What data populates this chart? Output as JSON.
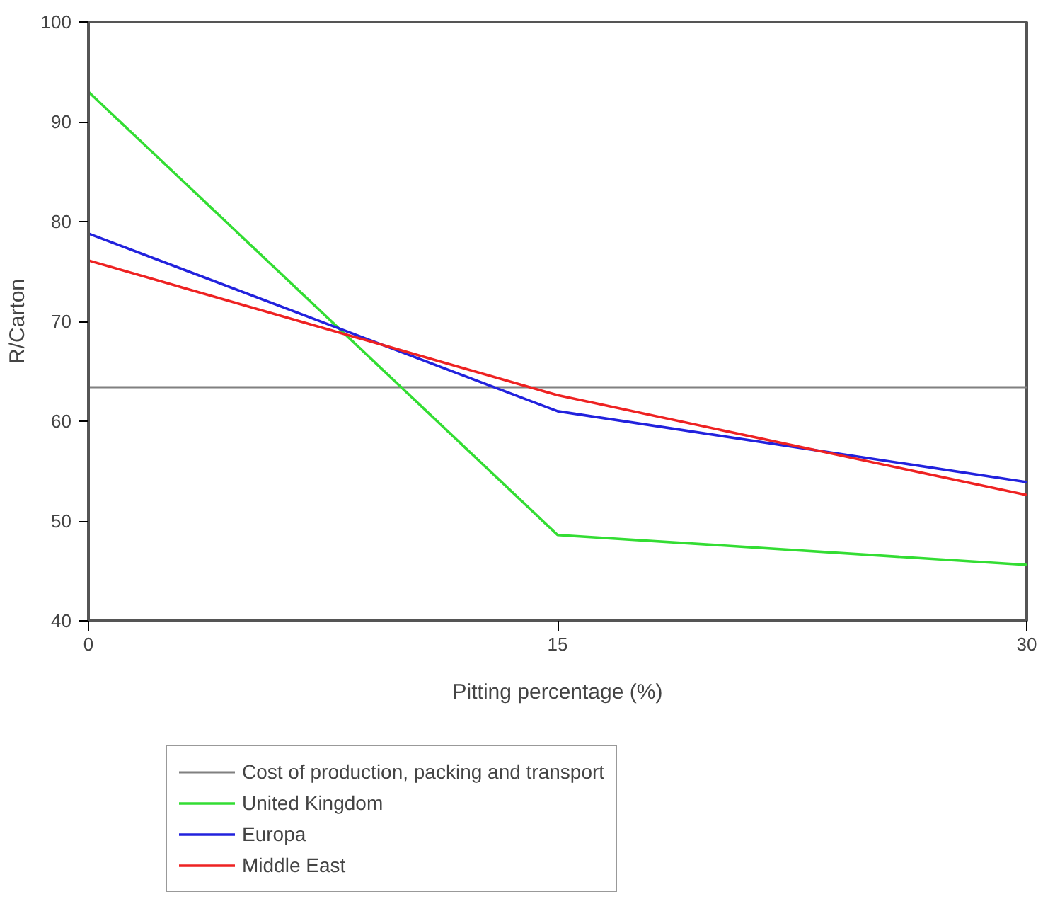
{
  "chart_data": {
    "type": "line",
    "xlabel": "Pitting percentage (%)",
    "ylabel": "R/Carton",
    "x": [
      0,
      15,
      30
    ],
    "xlim": [
      0,
      30
    ],
    "xticks": [
      0,
      15,
      30
    ],
    "ylim": [
      40,
      100
    ],
    "yticks": [
      40,
      50,
      60,
      70,
      80,
      90,
      100
    ],
    "grid": false,
    "legend": "bottom",
    "marker": "none",
    "line_style": "solid",
    "ref_lines": [
      {
        "axis": "y",
        "value": 63.4,
        "label": "Cost of production, packing and transport",
        "color": "#808080"
      }
    ],
    "series": [
      {
        "name": "United Kingdom",
        "color": "#33dd33",
        "values": [
          93.0,
          48.6,
          45.6
        ]
      },
      {
        "name": "Europa",
        "color": "#2222dd",
        "values": [
          78.8,
          61.0,
          53.9
        ]
      },
      {
        "name": "Middle East",
        "color": "#ee2222",
        "values": [
          76.1,
          62.6,
          52.6
        ]
      }
    ]
  }
}
